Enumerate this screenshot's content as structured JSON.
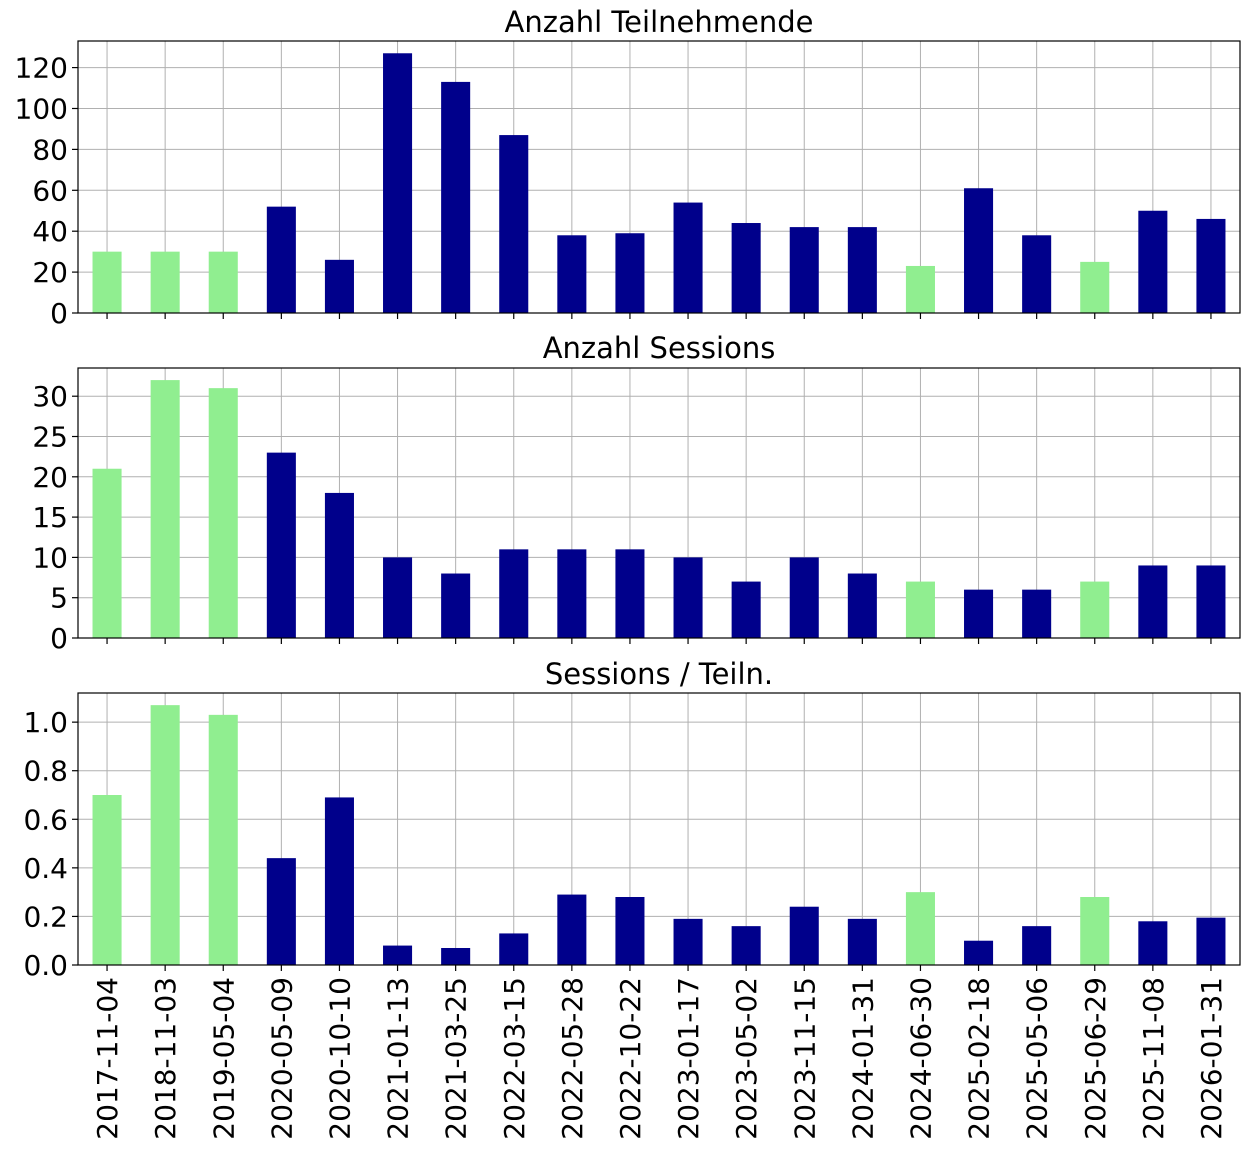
{
  "chart_data": [
    {
      "type": "bar",
      "title": "Anzahl Teilnehmende",
      "xlabel": "",
      "ylabel": "",
      "ylim": [
        0,
        133
      ],
      "yticks": [
        "0",
        "20",
        "40",
        "60",
        "80",
        "100",
        "120"
      ],
      "categories": [
        "2017-11-04",
        "2018-11-03",
        "2019-05-04",
        "2020-05-09",
        "2020-10-10",
        "2021-01-13",
        "2021-03-25",
        "2022-03-15",
        "2022-05-28",
        "2022-10-22",
        "2023-01-17",
        "2023-05-02",
        "2023-11-15",
        "2024-01-31",
        "2024-06-30",
        "2025-02-18",
        "2025-05-06",
        "2025-06-29",
        "2025-11-08",
        "2026-01-31"
      ],
      "values": [
        30,
        30,
        30,
        52,
        26,
        127,
        113,
        87,
        38,
        39,
        54,
        44,
        42,
        42,
        23,
        61,
        38,
        25,
        50,
        46
      ],
      "highlight": [
        true,
        true,
        true,
        false,
        false,
        false,
        false,
        false,
        false,
        false,
        false,
        false,
        false,
        false,
        true,
        false,
        false,
        true,
        false,
        false
      ],
      "grid": true
    },
    {
      "type": "bar",
      "title": "Anzahl Sessions",
      "xlabel": "",
      "ylabel": "",
      "ylim": [
        0,
        33.5
      ],
      "yticks": [
        "0",
        "5",
        "10",
        "15",
        "20",
        "25",
        "30"
      ],
      "categories": [
        "2017-11-04",
        "2018-11-03",
        "2019-05-04",
        "2020-05-09",
        "2020-10-10",
        "2021-01-13",
        "2021-03-25",
        "2022-03-15",
        "2022-05-28",
        "2022-10-22",
        "2023-01-17",
        "2023-05-02",
        "2023-11-15",
        "2024-01-31",
        "2024-06-30",
        "2025-02-18",
        "2025-05-06",
        "2025-06-29",
        "2025-11-08",
        "2026-01-31"
      ],
      "values": [
        21,
        32,
        31,
        23,
        18,
        10,
        8,
        11,
        11,
        11,
        10,
        7,
        10,
        8,
        7,
        6,
        6,
        7,
        9,
        9
      ],
      "highlight": [
        true,
        true,
        true,
        false,
        false,
        false,
        false,
        false,
        false,
        false,
        false,
        false,
        false,
        false,
        true,
        false,
        false,
        true,
        false,
        false
      ],
      "grid": true
    },
    {
      "type": "bar",
      "title": "Sessions / Teiln.",
      "xlabel": "",
      "ylabel": "",
      "ylim": [
        0,
        1.12
      ],
      "yticks": [
        "0.0",
        "0.2",
        "0.4",
        "0.6",
        "0.8",
        "1.0"
      ],
      "categories": [
        "2017-11-04",
        "2018-11-03",
        "2019-05-04",
        "2020-05-09",
        "2020-10-10",
        "2021-01-13",
        "2021-03-25",
        "2022-03-15",
        "2022-05-28",
        "2022-10-22",
        "2023-01-17",
        "2023-05-02",
        "2023-11-15",
        "2024-01-31",
        "2024-06-30",
        "2025-02-18",
        "2025-05-06",
        "2025-06-29",
        "2025-11-08",
        "2026-01-31"
      ],
      "values": [
        0.7,
        1.07,
        1.03,
        0.44,
        0.69,
        0.08,
        0.07,
        0.13,
        0.29,
        0.28,
        0.19,
        0.16,
        0.24,
        0.19,
        0.3,
        0.1,
        0.16,
        0.28,
        0.18,
        0.195
      ],
      "highlight": [
        true,
        true,
        true,
        false,
        false,
        false,
        false,
        false,
        false,
        false,
        false,
        false,
        false,
        false,
        true,
        false,
        false,
        true,
        false,
        false
      ],
      "grid": true
    }
  ],
  "colors": {
    "bar_default": "#00008b",
    "bar_highlight": "#90ee90",
    "grid": "#b0b0b0",
    "axis": "#000000"
  }
}
